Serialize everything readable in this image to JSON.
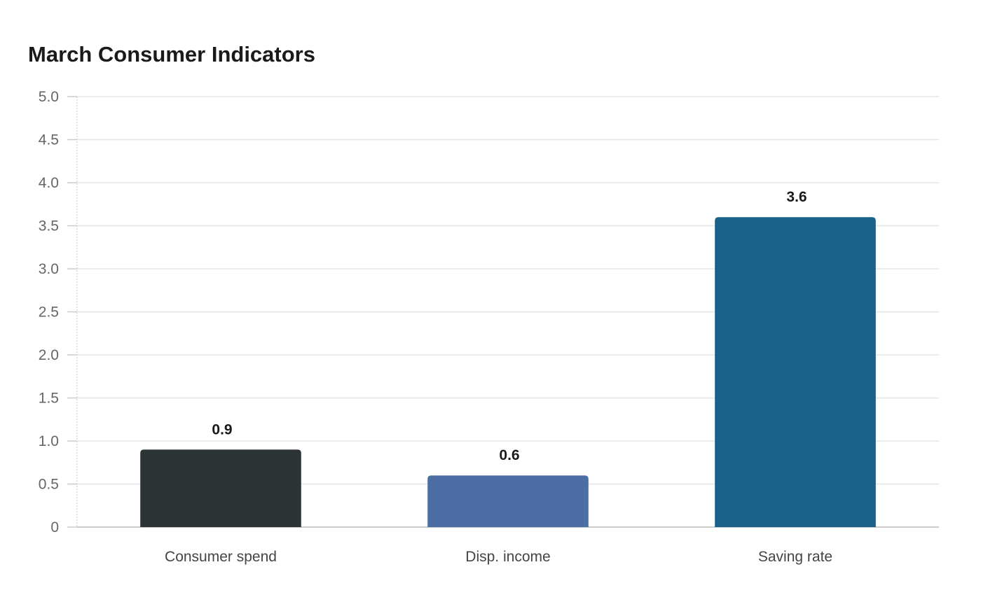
{
  "chart_data": {
    "type": "bar",
    "title": "March Consumer Indicators",
    "xlabel": "",
    "ylabel": "",
    "categories": [
      "Consumer spend",
      "Disp. income",
      "Saving rate"
    ],
    "values": [
      0.9,
      0.6,
      3.6
    ],
    "value_labels": [
      "0.9",
      "0.6",
      "3.6"
    ],
    "colors": [
      "#2d3436",
      "#4c6ea4",
      "#186287"
    ],
    "ylim": [
      0,
      5.0
    ],
    "y_ticks": [
      0,
      0.5,
      1.0,
      1.5,
      2.0,
      2.5,
      3.0,
      3.5,
      4.0,
      4.5,
      5.0
    ],
    "y_tick_labels": [
      "0",
      "0.5",
      "1.0",
      "1.5",
      "2.0",
      "2.5",
      "3.0",
      "3.5",
      "4.0",
      "4.5",
      "5.0"
    ],
    "grid": true,
    "legend": "none"
  }
}
